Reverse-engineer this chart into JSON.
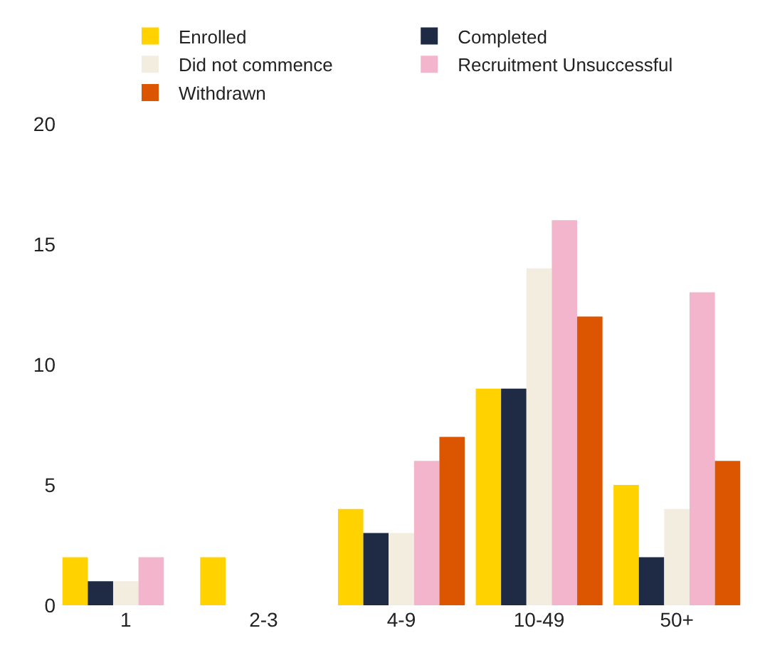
{
  "chart_data": {
    "type": "bar",
    "categories": [
      "1",
      "2-3",
      "4-9",
      "10-49",
      "50+"
    ],
    "series": [
      {
        "name": "Enrolled",
        "color": "#ffd200",
        "values": [
          2,
          2,
          4,
          9,
          5
        ]
      },
      {
        "name": "Completed",
        "color": "#1f2a44",
        "values": [
          1,
          0,
          3,
          9,
          2
        ]
      },
      {
        "name": "Did not commence",
        "color": "#f3ede0",
        "values": [
          1,
          0,
          3,
          14,
          4
        ]
      },
      {
        "name": "Recruitment Unsuccessful",
        "color": "#f2b5cb",
        "values": [
          2,
          0,
          6,
          16,
          13
        ]
      },
      {
        "name": "Withdrawn",
        "color": "#dc5500",
        "values": [
          0,
          0,
          7,
          12,
          6
        ]
      }
    ],
    "ylim": [
      0,
      20
    ],
    "yticks": [
      0,
      5,
      10,
      15,
      20
    ],
    "legend": "top"
  }
}
